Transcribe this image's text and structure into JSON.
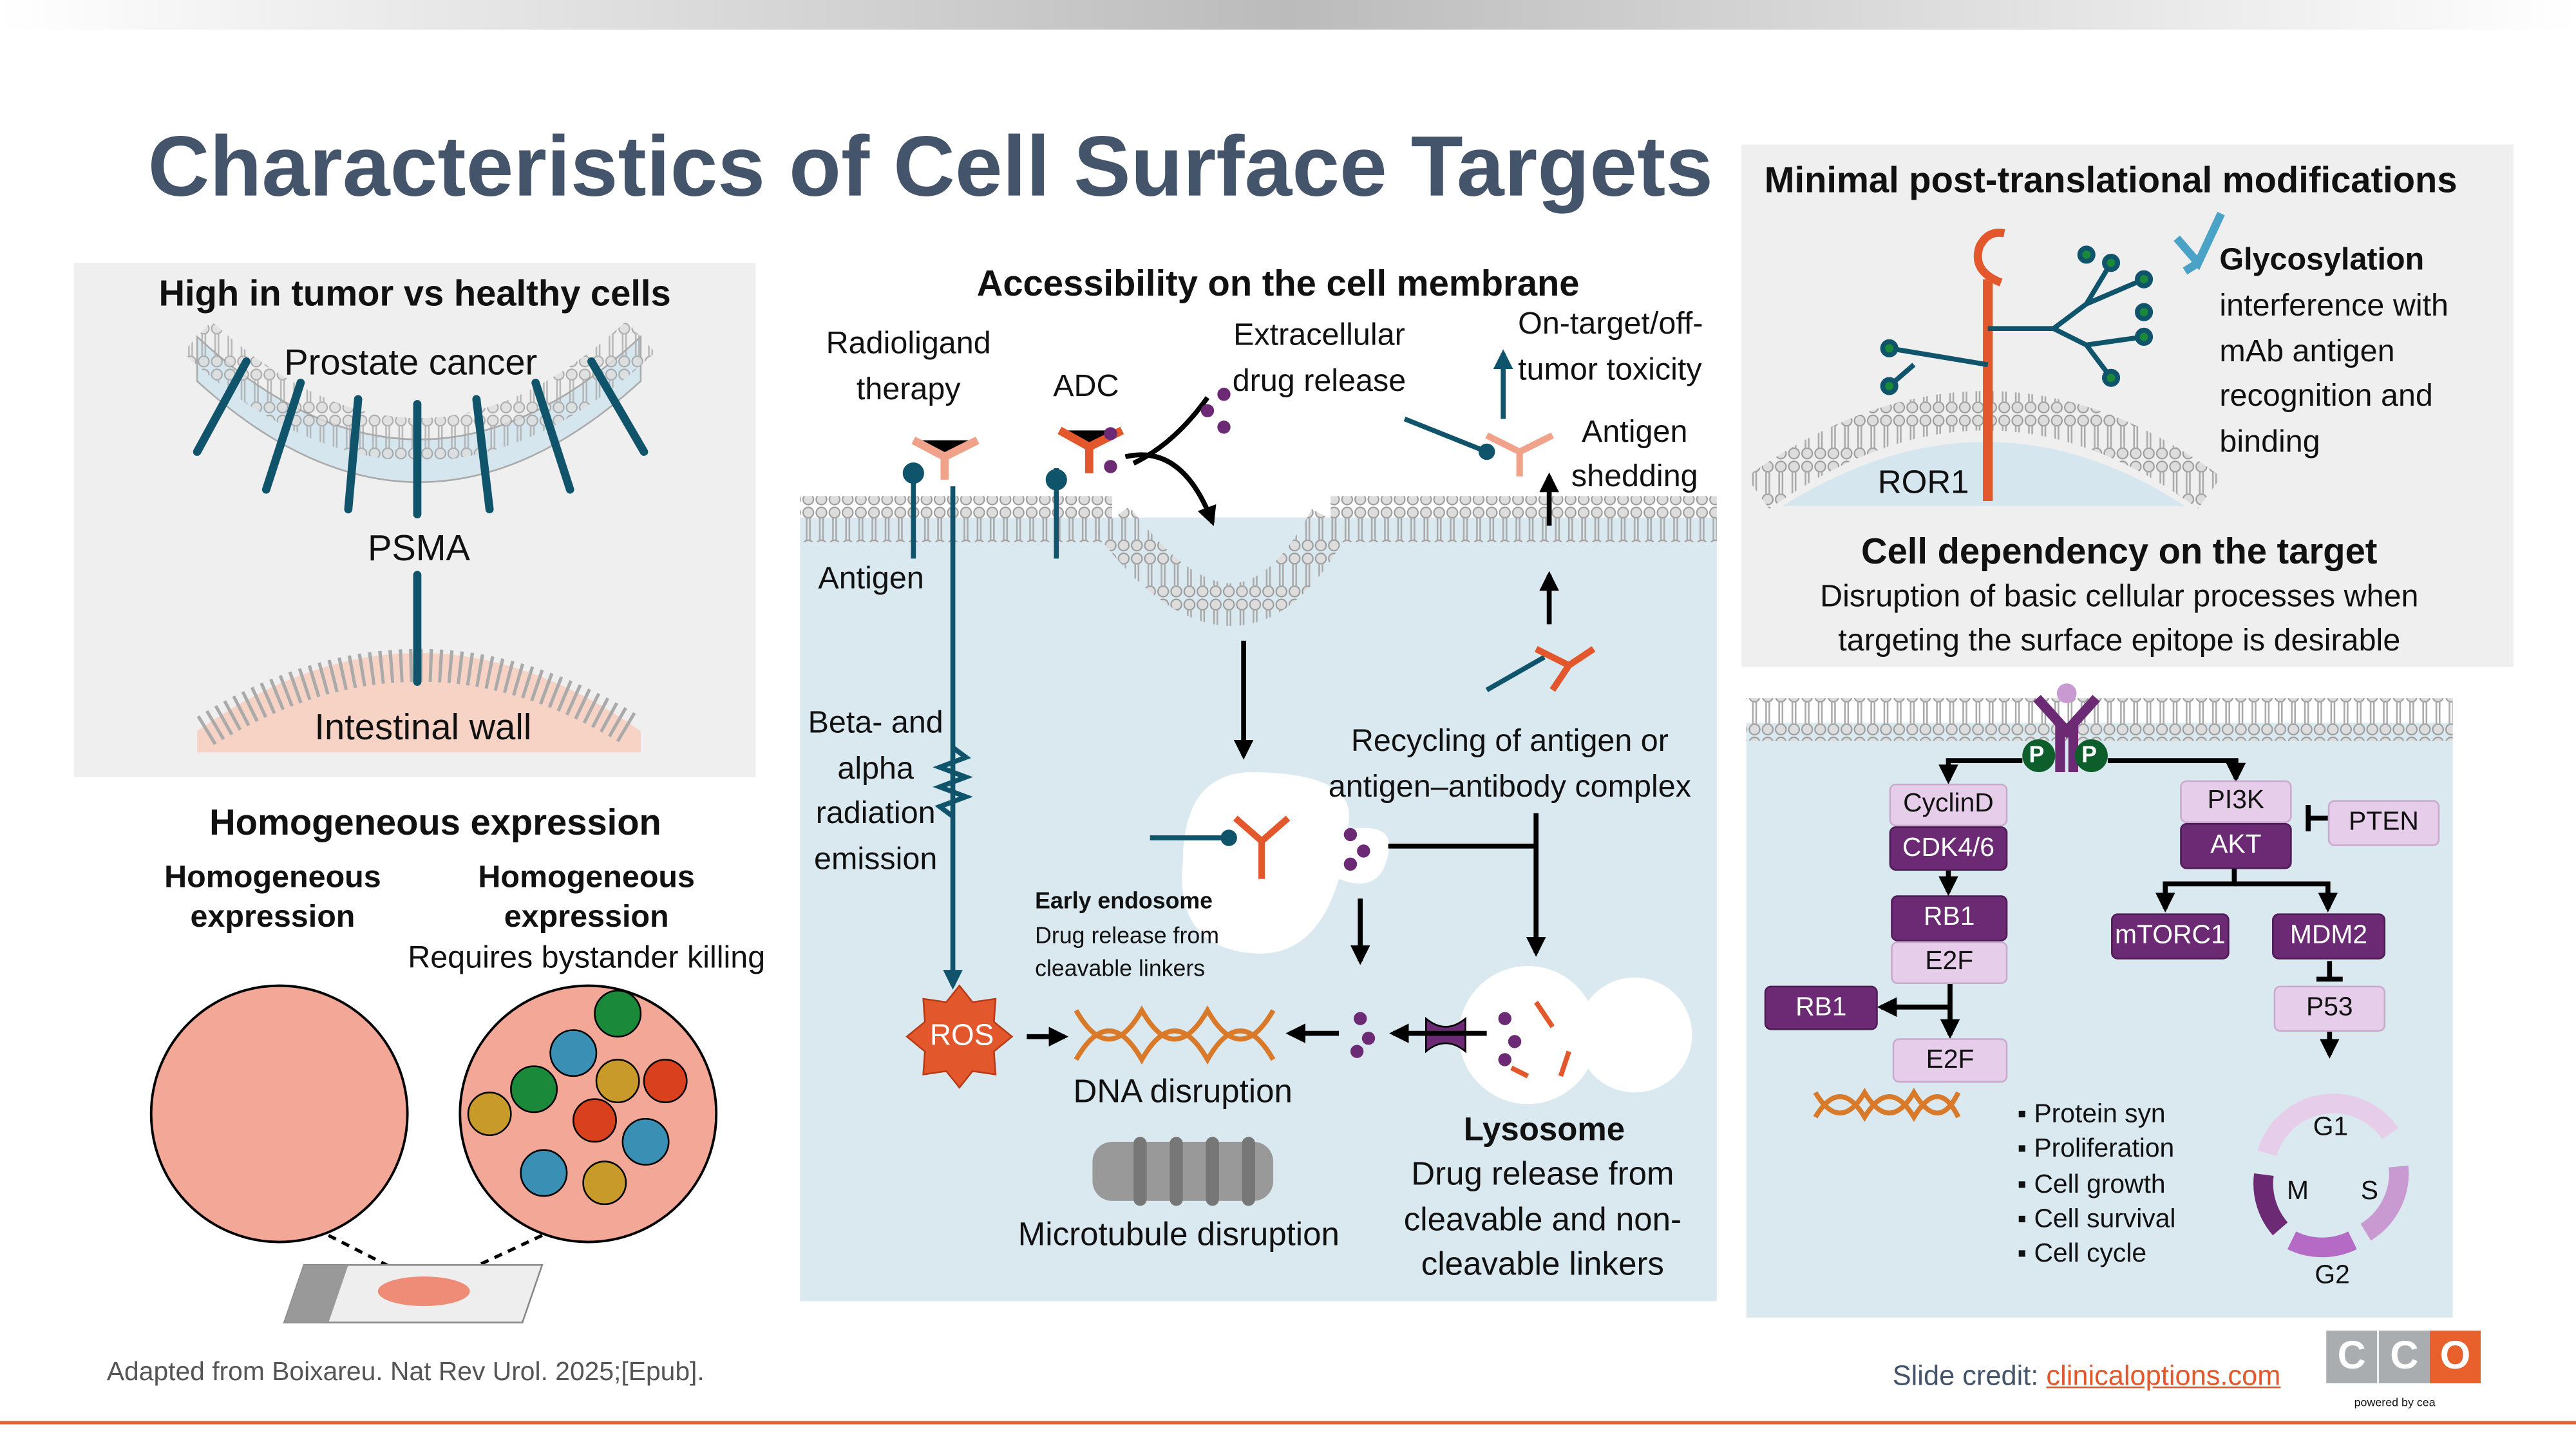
{
  "title": "Characteristics of Cell Surface Targets",
  "colors": {
    "title": "#44546a",
    "panel_grey": "#efefef",
    "panel_blue": "#dae9f0",
    "teal": "#10546c",
    "orange": "#e2572b",
    "purple_dark": "#6b2a73",
    "purple_light": "#e6cde9",
    "accent": "#e8612c"
  },
  "tumor_panel": {
    "heading": "High in tumor vs healthy cells",
    "top_label": "Prostate cancer",
    "marker": "PSMA",
    "bottom_label": "Intestinal wall"
  },
  "expression_panel": {
    "heading": "Homogeneous expression",
    "left_label": "Homogeneous expression",
    "right_label": "Homogeneous expression",
    "right_note": "Requires bystander killing"
  },
  "access_panel": {
    "heading": "Accessibility on the cell membrane",
    "radioligand": "Radioligand therapy",
    "adc": "ADC",
    "extracellular": "Extracellular drug release",
    "toxicity": "On-target/off-tumor toxicity",
    "shedding": "Antigen shedding",
    "antigen": "Antigen",
    "radiation": "Beta- and alpha radiation emission",
    "recycling": "Recycling of antigen or antigen–antibody complex",
    "endosome_title": "Early endosome",
    "endosome_desc": "Drug release from cleavable linkers",
    "ros": "ROS",
    "dna": "DNA disruption",
    "microtubule": "Microtubule disruption",
    "lysosome_title": "Lysosome",
    "lysosome_desc": "Drug release from cleavable and non-cleavable linkers"
  },
  "ptm_panel": {
    "heading": "Minimal post-translational modifications",
    "glyco_title": "Glycosylation",
    "glyco_desc": "interference with mAb antigen recognition and binding",
    "receptor": "ROR1"
  },
  "dependency_panel": {
    "heading": "Cell dependency on the target",
    "desc": "Disruption of basic cellular processes when targeting the surface epitope is desirable"
  },
  "pathway": {
    "phospho": "P",
    "nodes": {
      "cyclind": "CyclinD",
      "cdk46": "CDK4/6",
      "rb1": "RB1",
      "e2f": "E2F",
      "rb1_free": "RB1",
      "e2f_free": "E2F",
      "pi3k": "PI3K",
      "akt": "AKT",
      "pten": "PTEN",
      "mtorc1": "mTORC1",
      "mdm2": "MDM2",
      "p53": "P53"
    },
    "outcomes": [
      "Protein syn",
      "Proliferation",
      "Cell growth",
      "Cell survival",
      "Cell cycle"
    ],
    "cycle": {
      "g1": "G1",
      "s": "S",
      "g2": "G2",
      "m": "M"
    }
  },
  "footer": {
    "source": "Adapted from Boixareu. Nat Rev Urol. 2025;[Epub].",
    "credit_label": "Slide credit: ",
    "credit_link": "clinicaloptions.com",
    "logo": "CCO",
    "logo_sub": "powered by cea"
  }
}
